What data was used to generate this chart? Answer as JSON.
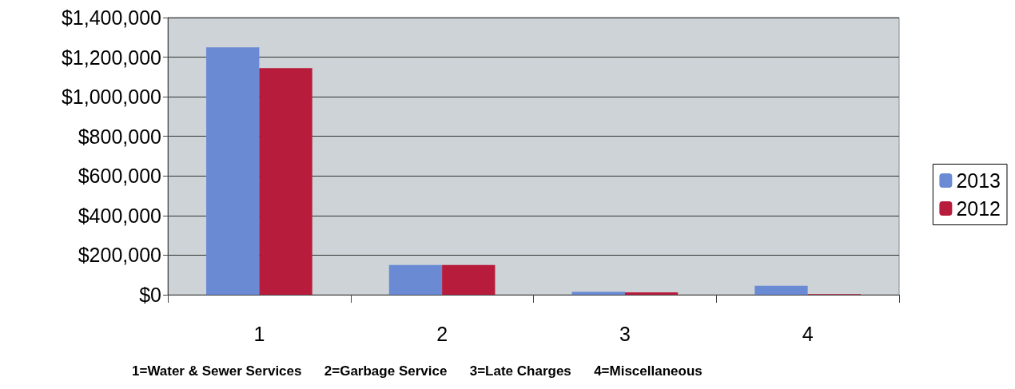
{
  "chart_data": {
    "type": "bar",
    "categories": [
      "1",
      "2",
      "3",
      "4"
    ],
    "series": [
      {
        "name": "2013",
        "color": "#6a8bd4",
        "values": [
          1250000,
          150000,
          15000,
          45000
        ]
      },
      {
        "name": "2012",
        "color": "#b81c3c",
        "values": [
          1145000,
          150000,
          12000,
          3000
        ]
      }
    ],
    "ylim": [
      0,
      1400000
    ],
    "yticks": [
      {
        "value": 0,
        "label": "$0"
      },
      {
        "value": 200000,
        "label": "$200,000"
      },
      {
        "value": 400000,
        "label": "$400,000"
      },
      {
        "value": 600000,
        "label": "$600,000"
      },
      {
        "value": 800000,
        "label": "$800,000"
      },
      {
        "value": 1000000,
        "label": "$1,000,000"
      },
      {
        "value": 1200000,
        "label": "$1,200,000"
      },
      {
        "value": 1400000,
        "label": "$1,400,000"
      }
    ],
    "grid": "y",
    "legend": "right",
    "annotations": [
      "1=Water & Sewer Services",
      "2=Garbage Service",
      "3=Late Charges",
      "4=Miscellaneous"
    ]
  }
}
